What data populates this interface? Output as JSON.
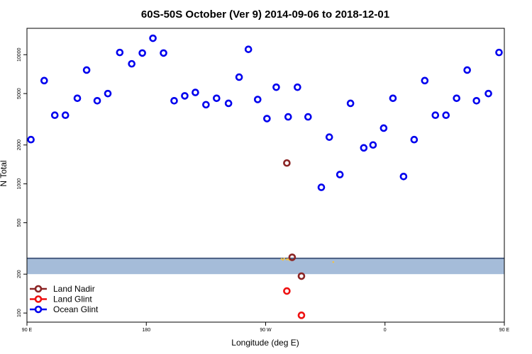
{
  "chart_data": {
    "type": "scatter",
    "title": "60S-50S October (Ver 9)   2014-09-06 to 2018-12-01",
    "xlabel": "Longitude (deg E)",
    "ylabel": "N Total",
    "x_scale": "linear",
    "y_scale": "log",
    "xlim": [
      90,
      450
    ],
    "ylim": [
      85,
      16000
    ],
    "x_ticks": [
      {
        "value": 90,
        "label": "90 E"
      },
      {
        "value": 180,
        "label": "180"
      },
      {
        "value": 270,
        "label": "90 W"
      },
      {
        "value": 360,
        "label": "0"
      },
      {
        "value": 450,
        "label": "90 E"
      },
      {
        "value": 540,
        "label": "180"
      }
    ],
    "y_ticks": [
      {
        "value": 100,
        "label": "100"
      },
      {
        "value": 200,
        "label": "200"
      },
      {
        "value": 500,
        "label": "500"
      },
      {
        "value": 1000,
        "label": "1000"
      },
      {
        "value": 2000,
        "label": "2000"
      },
      {
        "value": 5000,
        "label": "5000"
      },
      {
        "value": 10000,
        "label": "10000"
      }
    ],
    "band": {
      "ymin": 200,
      "ymax": 265,
      "color": "#a5bcd9",
      "edge_color": "#4a5e82"
    },
    "series": [
      {
        "name": "Land Nadir",
        "color": "#8b2525",
        "points": [
          [
            286,
            1450
          ],
          [
            290,
            270
          ],
          [
            297,
            193
          ]
        ]
      },
      {
        "name": "Land Glint",
        "color": "#ee1111",
        "points": [
          [
            286,
            148
          ],
          [
            297,
            96
          ]
        ]
      },
      {
        "name": "Ocean Glint",
        "color": "#0000ee",
        "points": [
          [
            93,
            2200
          ],
          [
            103,
            6300
          ],
          [
            111,
            3400
          ],
          [
            119,
            3400
          ],
          [
            128,
            4600
          ],
          [
            135,
            7600
          ],
          [
            143,
            4400
          ],
          [
            151,
            5000
          ],
          [
            160,
            10400
          ],
          [
            169,
            8500
          ],
          [
            177,
            10300
          ],
          [
            185,
            13400
          ],
          [
            193,
            10300
          ],
          [
            201,
            4400
          ],
          [
            209,
            4800
          ],
          [
            217,
            5100
          ],
          [
            225,
            4100
          ],
          [
            233,
            4600
          ],
          [
            242,
            4200
          ],
          [
            250,
            6700
          ],
          [
            257,
            11000
          ],
          [
            264,
            4500
          ],
          [
            271,
            3200
          ],
          [
            278,
            5600
          ],
          [
            287,
            3300
          ],
          [
            294,
            5600
          ],
          [
            302,
            3300
          ],
          [
            312,
            940
          ],
          [
            318,
            2300
          ],
          [
            326,
            1180
          ],
          [
            334,
            4200
          ],
          [
            344,
            1900
          ],
          [
            351,
            2000
          ],
          [
            359,
            2700
          ],
          [
            366,
            4600
          ],
          [
            374,
            1140
          ],
          [
            382,
            2200
          ],
          [
            390,
            6300
          ],
          [
            398,
            3400
          ],
          [
            406,
            3400
          ],
          [
            414,
            4600
          ],
          [
            422,
            7600
          ],
          [
            429,
            4400
          ],
          [
            438,
            5000
          ],
          [
            446,
            10400
          ]
        ]
      }
    ],
    "legend": {
      "placement": "bottom-left"
    }
  }
}
